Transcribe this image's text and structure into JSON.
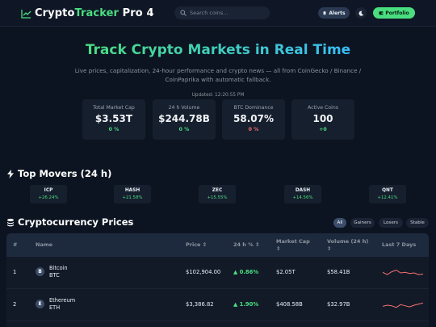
{
  "header": {
    "brand_prefix": "Crypto",
    "brand_accent": "Tracker",
    "brand_suffix": " Pro 4",
    "search_placeholder": "Search coins...",
    "alerts_label": "Alerts",
    "portfolio_label": "Portfolio",
    "icons": [
      "chart-line-icon",
      "search-icon",
      "bell-icon",
      "moon-icon",
      "wallet-icon"
    ]
  },
  "hero": {
    "title": "Track Crypto Markets in Real Time",
    "subtitle": "Live prices, capitalization, 24-hour performance and crypto news — all from CoinGecko / Binance / CoinPaprika with automatic fallback.",
    "updated": "Updated: 12:20:55 PM"
  },
  "stats": [
    {
      "label": "Total Market Cap",
      "value": "$3.53T",
      "change": "0 %"
    },
    {
      "label": "24 h Volume",
      "value": "$244.78B",
      "change": "0 %"
    },
    {
      "label": "BTC Dominance",
      "value": "58.07%",
      "change": "0 %"
    },
    {
      "label": "Active Coins",
      "value": "100",
      "change": "+0"
    }
  ],
  "movers": {
    "title": "Top Movers (24 h)",
    "items": [
      {
        "symbol": "ICP",
        "change": "+26.24%"
      },
      {
        "symbol": "HASH",
        "change": "+21.58%"
      },
      {
        "symbol": "ZEC",
        "change": "+15.55%"
      },
      {
        "symbol": "DASH",
        "change": "+14.56%"
      },
      {
        "symbol": "QNT",
        "change": "+12.41%"
      }
    ]
  },
  "prices": {
    "title": "Cryptocurrency Prices",
    "filters": [
      "All",
      "Gainers",
      "Losers",
      "Stable"
    ],
    "active_filter": "All",
    "columns": [
      "#",
      "Name",
      "Price ⇕",
      "24 h % ⇕",
      "Market Cap ⇕",
      "Volume (24 h) ⇕",
      "Last 7 Days"
    ],
    "rows": [
      {
        "rank": "1",
        "badge": "B",
        "name": "Bitcoin",
        "symbol": "BTC",
        "price": "$102,904.00",
        "change": "▲ 0.86%",
        "market_cap": "$2.05T",
        "volume": "$58.41B",
        "spark": [
          0.55,
          0.35,
          0.6,
          0.75,
          0.5,
          0.55,
          0.45,
          0.5,
          0.35,
          0.4
        ]
      },
      {
        "rank": "2",
        "badge": "E",
        "name": "Ethereum",
        "symbol": "ETH",
        "price": "$3,386.82",
        "change": "▲ 1.90%",
        "market_cap": "$408.58B",
        "volume": "$32.97B",
        "spark": [
          0.4,
          0.5,
          0.45,
          0.3,
          0.55,
          0.45,
          0.35,
          0.5,
          0.6,
          0.7
        ]
      }
    ]
  },
  "colors": {
    "background": "#0d1421",
    "accent_green": "#4ade80",
    "accent_blue": "#38bdf8",
    "negative_red": "#f87171",
    "sparkline": "#f87171"
  }
}
